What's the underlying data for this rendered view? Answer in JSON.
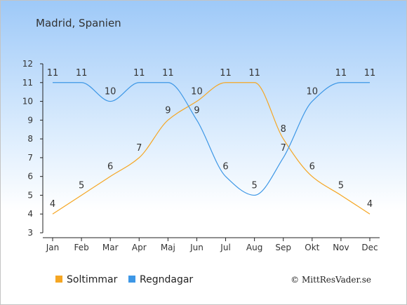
{
  "chart_data": {
    "type": "line",
    "title": "Madrid, Spanien",
    "xlabel": "",
    "ylabel": "",
    "categories": [
      "Jan",
      "Feb",
      "Mar",
      "Apr",
      "Maj",
      "Jun",
      "Jul",
      "Aug",
      "Sep",
      "Okt",
      "Nov",
      "Dec"
    ],
    "ylim": [
      3,
      12
    ],
    "yticks": [
      3,
      4,
      5,
      6,
      7,
      8,
      9,
      10,
      11,
      12
    ],
    "grid": false,
    "legend_position": "bottom-left",
    "series": [
      {
        "name": "Soltimmar",
        "color": "#f5a623",
        "values": [
          4,
          5,
          6,
          7,
          9,
          10,
          11,
          11,
          8,
          6,
          5,
          4
        ]
      },
      {
        "name": "Regndagar",
        "color": "#3d97e6",
        "values": [
          11,
          11,
          10,
          11,
          11,
          9,
          6,
          5,
          7,
          10,
          11,
          11
        ]
      }
    ],
    "credit": "© MittResVader.se"
  }
}
